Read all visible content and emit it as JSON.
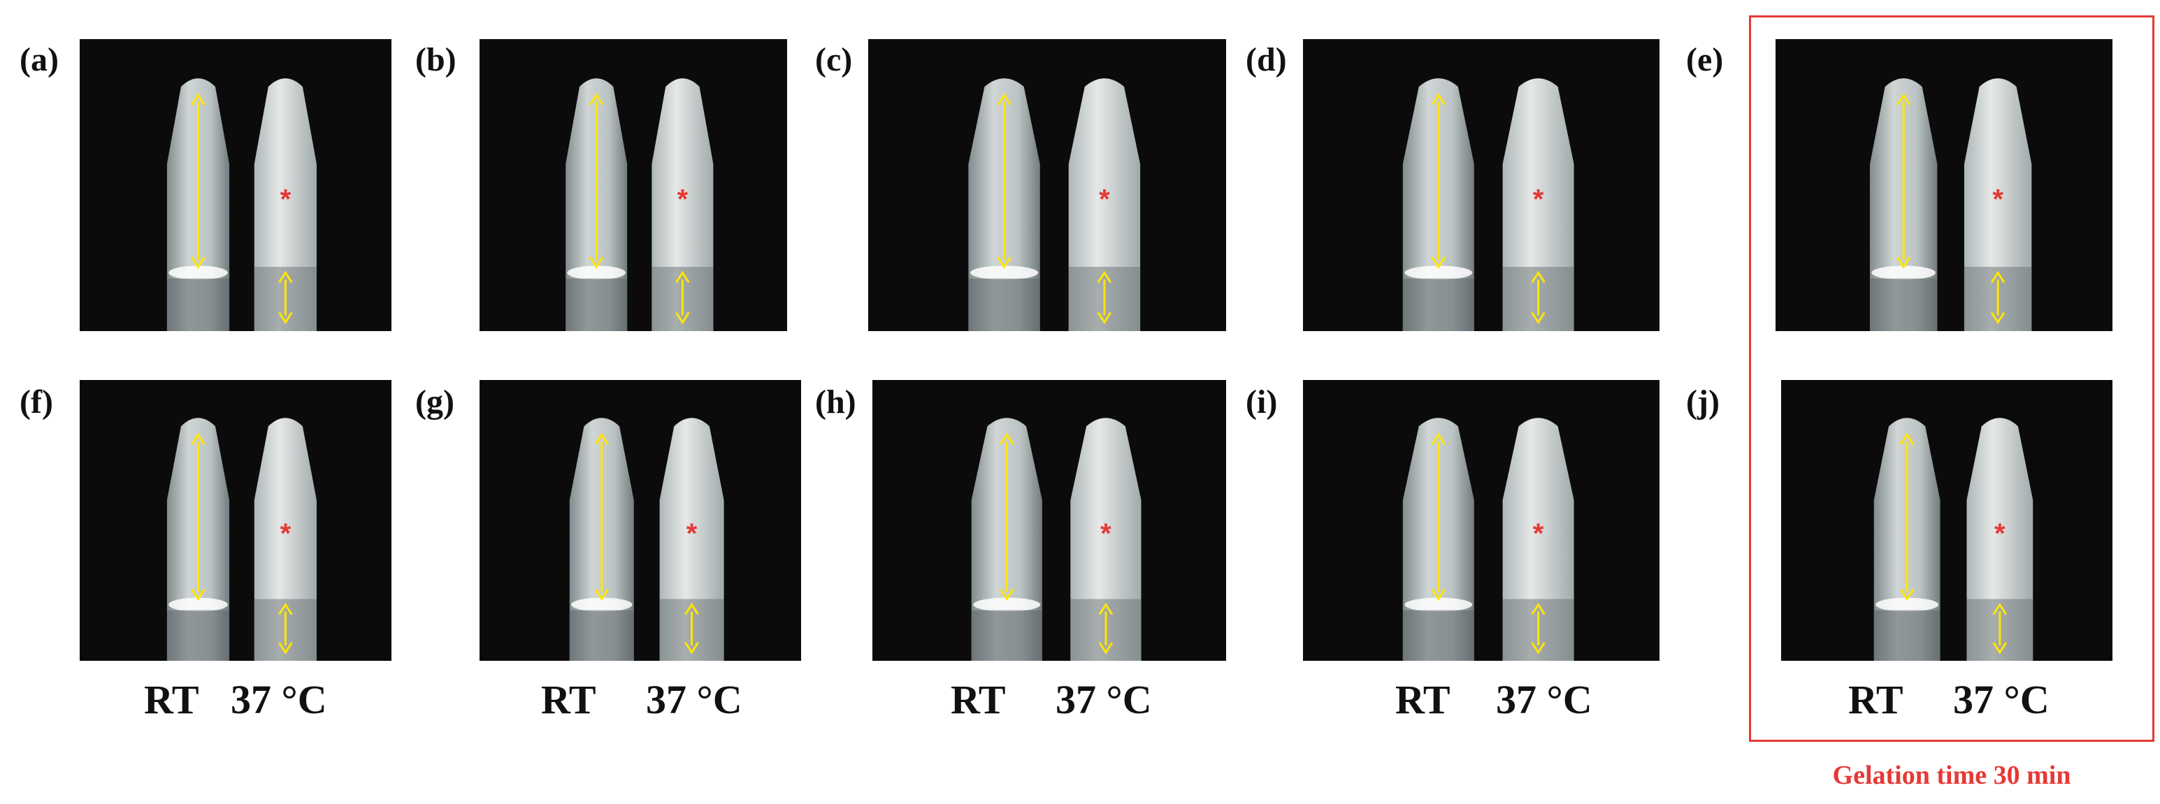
{
  "panels": [
    {
      "label": "(a)"
    },
    {
      "label": "(b)"
    },
    {
      "label": "(c)"
    },
    {
      "label": "(d)"
    },
    {
      "label": "(e)"
    },
    {
      "label": "(f)"
    },
    {
      "label": "(g)"
    },
    {
      "label": "(h)"
    },
    {
      "label": "(i)"
    },
    {
      "label": "(j)"
    }
  ],
  "captions": [
    {
      "rt": "RT",
      "hot": "37 °C"
    },
    {
      "rt": "RT",
      "hot": "37 °C"
    },
    {
      "rt": "RT",
      "hot": "37 °C"
    },
    {
      "rt": "RT",
      "hot": "37 °C"
    },
    {
      "rt": "RT",
      "hot": "37 °C"
    }
  ],
  "highlight": {
    "note": "Gelation time 30 min"
  },
  "marker_symbol": "*",
  "colors": {
    "background": "#0b0b0b",
    "arrow": "#ffe600",
    "marker": "#e53935",
    "frame": "#e53935"
  }
}
